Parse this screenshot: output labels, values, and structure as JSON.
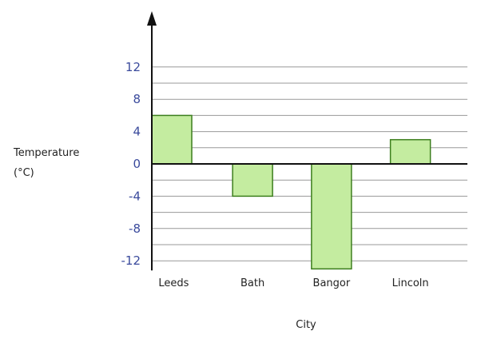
{
  "chart_data": {
    "type": "bar",
    "categories": [
      "Leeds",
      "Bath",
      "Bangor",
      "Lincoln"
    ],
    "values": [
      6,
      -4,
      -13,
      3
    ],
    "xlabel": "City",
    "ylabel_lines": [
      "Temperature",
      "(°C)"
    ],
    "yticks": [
      "12",
      "8",
      "4",
      "0",
      "-4",
      "-8",
      "-12"
    ],
    "ytick_values": [
      12,
      8,
      4,
      0,
      -4,
      -8,
      -12
    ],
    "ylim": [
      -13,
      13
    ],
    "grid": true,
    "colors": {
      "bar_fill": "#c4eca0",
      "bar_stroke": "#3d7f1e",
      "grid": "#999999",
      "axis": "#111111",
      "tick_text": "#3a4a9c"
    }
  }
}
